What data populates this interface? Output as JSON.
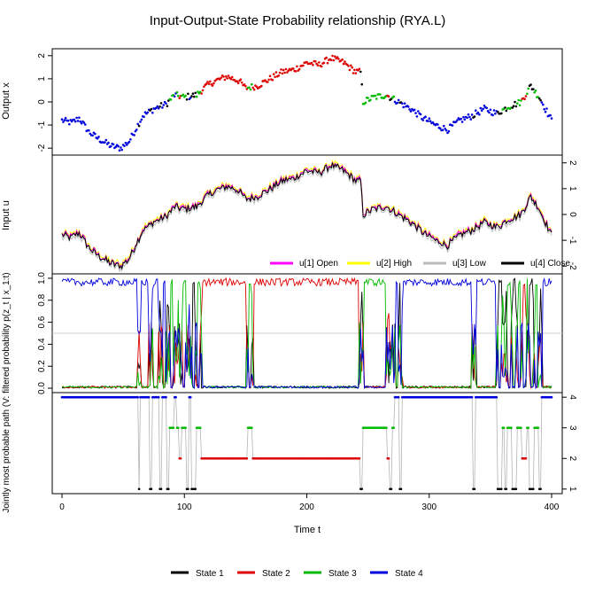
{
  "chart_data": {
    "type": "line",
    "title": "Input-Output-State Probability relationship (RYA.L)",
    "xlabel": "Time t",
    "xlim": [
      0,
      400
    ],
    "x_ticks": [
      0,
      100,
      200,
      300,
      400
    ],
    "grid": false,
    "colors": {
      "state1": "#000000",
      "state2": "#dd0000",
      "state3": "#00bb00",
      "state4": "#0000dd",
      "open": "#ff00ff",
      "high": "#ffff00",
      "low": "#bbbbbb",
      "close": "#000000",
      "path_line": "#b4b4b4",
      "threshold": "#cccccc"
    },
    "output_panel": {
      "ylabel": "Output x",
      "ylim": [
        -2.3,
        2.3
      ],
      "y_ticks": [
        -2,
        -1,
        0,
        1,
        2
      ],
      "anchors": [
        [
          0,
          -0.8
        ],
        [
          8,
          -0.9
        ],
        [
          14,
          -0.7
        ],
        [
          22,
          -1.3
        ],
        [
          30,
          -1.6
        ],
        [
          40,
          -1.9
        ],
        [
          48,
          -2.0
        ],
        [
          55,
          -1.7
        ],
        [
          60,
          -1.2
        ],
        [
          66,
          -0.6
        ],
        [
          75,
          -0.3
        ],
        [
          85,
          -0.1
        ],
        [
          92,
          0.3
        ],
        [
          100,
          0.2
        ],
        [
          110,
          0.3
        ],
        [
          118,
          0.7
        ],
        [
          125,
          0.9
        ],
        [
          135,
          1.1
        ],
        [
          145,
          0.9
        ],
        [
          150,
          0.6
        ],
        [
          160,
          0.7
        ],
        [
          170,
          1.0
        ],
        [
          180,
          1.3
        ],
        [
          190,
          1.4
        ],
        [
          200,
          1.7
        ],
        [
          210,
          1.6
        ],
        [
          220,
          1.9
        ],
        [
          230,
          1.7
        ],
        [
          240,
          1.3
        ],
        [
          244,
          1.3
        ],
        [
          246,
          0.0
        ],
        [
          255,
          0.2
        ],
        [
          265,
          0.3
        ],
        [
          275,
          0.0
        ],
        [
          285,
          -0.3
        ],
        [
          295,
          -0.7
        ],
        [
          305,
          -1.0
        ],
        [
          315,
          -1.2
        ],
        [
          325,
          -0.8
        ],
        [
          335,
          -0.6
        ],
        [
          345,
          -0.3
        ],
        [
          355,
          -0.5
        ],
        [
          365,
          -0.2
        ],
        [
          375,
          0.0
        ],
        [
          383,
          0.7
        ],
        [
          390,
          0.2
        ],
        [
          400,
          -0.8
        ]
      ]
    },
    "input_panel": {
      "ylabel": "Input u",
      "ylim": [
        -2.3,
        2.3
      ],
      "y_ticks": [
        -2,
        -1,
        0,
        1,
        2
      ],
      "legend": [
        "u[1] Open",
        "u[2] High",
        "u[3] Low",
        "u[4] Close"
      ],
      "legend_position": "bottom-right"
    },
    "probability_panel": {
      "ylabel": "Jointly most probable path (V: filtered probability p(z_t | x_1:t)",
      "ylim": [
        -0.04,
        1.04
      ],
      "y_ticks": [
        0.0,
        0.2,
        0.4,
        0.6,
        0.8,
        1.0
      ],
      "y_tick_labels": [
        "0.0",
        "0.2",
        "0.4",
        "0.6",
        "0.8",
        "1.0"
      ],
      "threshold": 0.5
    },
    "path_panel": {
      "ylim": [
        0.85,
        4.15
      ],
      "y_ticks": [
        1,
        2,
        3,
        4
      ],
      "state_segments": [
        [
          0,
          63,
          4
        ],
        [
          63,
          64,
          1
        ],
        [
          64,
          72,
          4
        ],
        [
          72,
          74,
          1
        ],
        [
          74,
          80,
          4
        ],
        [
          80,
          82,
          1
        ],
        [
          82,
          86,
          4
        ],
        [
          86,
          88,
          1
        ],
        [
          88,
          92,
          3
        ],
        [
          92,
          94,
          4
        ],
        [
          94,
          96,
          3
        ],
        [
          96,
          98,
          2
        ],
        [
          98,
          102,
          3
        ],
        [
          102,
          104,
          1
        ],
        [
          104,
          106,
          4
        ],
        [
          106,
          110,
          1
        ],
        [
          110,
          114,
          3
        ],
        [
          114,
          116,
          2
        ],
        [
          116,
          152,
          2
        ],
        [
          152,
          156,
          3
        ],
        [
          156,
          244,
          2
        ],
        [
          244,
          246,
          1
        ],
        [
          246,
          266,
          3
        ],
        [
          266,
          268,
          2
        ],
        [
          268,
          270,
          1
        ],
        [
          270,
          272,
          3
        ],
        [
          272,
          276,
          4
        ],
        [
          276,
          278,
          1
        ],
        [
          278,
          280,
          4
        ],
        [
          280,
          336,
          4
        ],
        [
          336,
          338,
          1
        ],
        [
          338,
          356,
          4
        ],
        [
          356,
          360,
          1
        ],
        [
          360,
          362,
          3
        ],
        [
          362,
          364,
          1
        ],
        [
          364,
          368,
          3
        ],
        [
          368,
          372,
          1
        ],
        [
          372,
          376,
          3
        ],
        [
          376,
          380,
          2
        ],
        [
          380,
          382,
          3
        ],
        [
          382,
          386,
          1
        ],
        [
          386,
          390,
          3
        ],
        [
          390,
          392,
          1
        ],
        [
          392,
          396,
          4
        ],
        [
          396,
          400,
          4
        ]
      ]
    },
    "state_legend": [
      "State  1",
      "State  2",
      "State  3",
      "State  4"
    ]
  }
}
